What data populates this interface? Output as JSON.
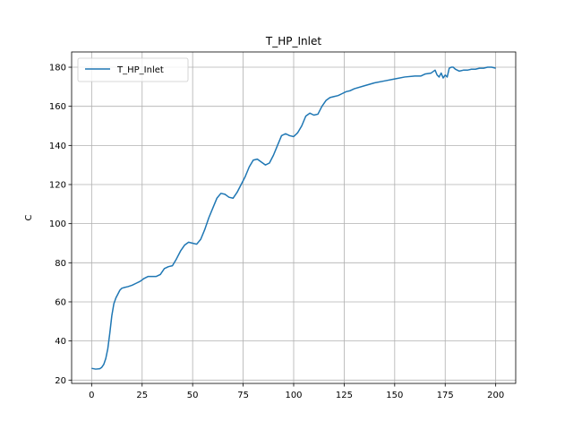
{
  "chart_data": {
    "type": "line",
    "title": "T_HP_Inlet",
    "xlabel": "",
    "ylabel": "C",
    "xlim": [
      -9.9,
      209.9
    ],
    "ylim": [
      18.3,
      187.8
    ],
    "xticks": [
      0,
      25,
      50,
      75,
      100,
      125,
      150,
      175,
      200
    ],
    "yticks": [
      20,
      40,
      60,
      80,
      100,
      120,
      140,
      160,
      180
    ],
    "grid": true,
    "legend_position": "top-left",
    "series": [
      {
        "name": "T_HP_Inlet",
        "color": "#1f77b4",
        "x": [
          0,
          2,
          4,
          5,
          6,
          7,
          8,
          9,
          10,
          11,
          12,
          13,
          14,
          15,
          16,
          18,
          20,
          22,
          24,
          26,
          28,
          30,
          32,
          34,
          36,
          38,
          40,
          42,
          44,
          46,
          48,
          50,
          52,
          54,
          56,
          58,
          60,
          62,
          64,
          66,
          68,
          70,
          72,
          74,
          76,
          78,
          80,
          82,
          84,
          86,
          88,
          90,
          92,
          94,
          96,
          98,
          100,
          102,
          104,
          106,
          108,
          110,
          112,
          114,
          116,
          118,
          120,
          122,
          124,
          126,
          128,
          130,
          135,
          140,
          145,
          150,
          155,
          160,
          163,
          165,
          168,
          170,
          171,
          172,
          173,
          174,
          175,
          176,
          177,
          178,
          179,
          180,
          182,
          184,
          186,
          188,
          190,
          192,
          194,
          196,
          198,
          200
        ],
        "y": [
          26,
          25.6,
          25.8,
          26.5,
          28,
          31,
          36,
          44,
          53,
          59,
          62,
          64,
          66,
          67,
          67.3,
          67.8,
          68.5,
          69.5,
          70.5,
          72,
          73,
          73,
          73,
          74,
          77,
          78,
          78.5,
          82,
          86,
          89,
          90.5,
          90,
          89.5,
          92,
          97,
          103,
          108,
          113,
          115.5,
          115,
          113.5,
          113,
          116,
          120,
          124,
          129,
          132.5,
          133,
          131.5,
          130,
          131,
          135,
          140,
          145,
          146,
          145,
          144.5,
          146.5,
          150,
          155,
          156.5,
          155.5,
          156,
          160,
          163,
          164.5,
          165,
          165.5,
          166.5,
          167.5,
          168,
          169,
          170.5,
          172,
          173,
          174,
          175,
          175.5,
          175.5,
          176.5,
          177,
          178.5,
          176,
          175,
          177,
          174.5,
          176,
          175,
          179.5,
          180,
          180,
          179,
          178,
          178.5,
          178.5,
          179,
          179,
          179.5,
          179.5,
          180,
          180,
          179.5
        ]
      }
    ]
  }
}
